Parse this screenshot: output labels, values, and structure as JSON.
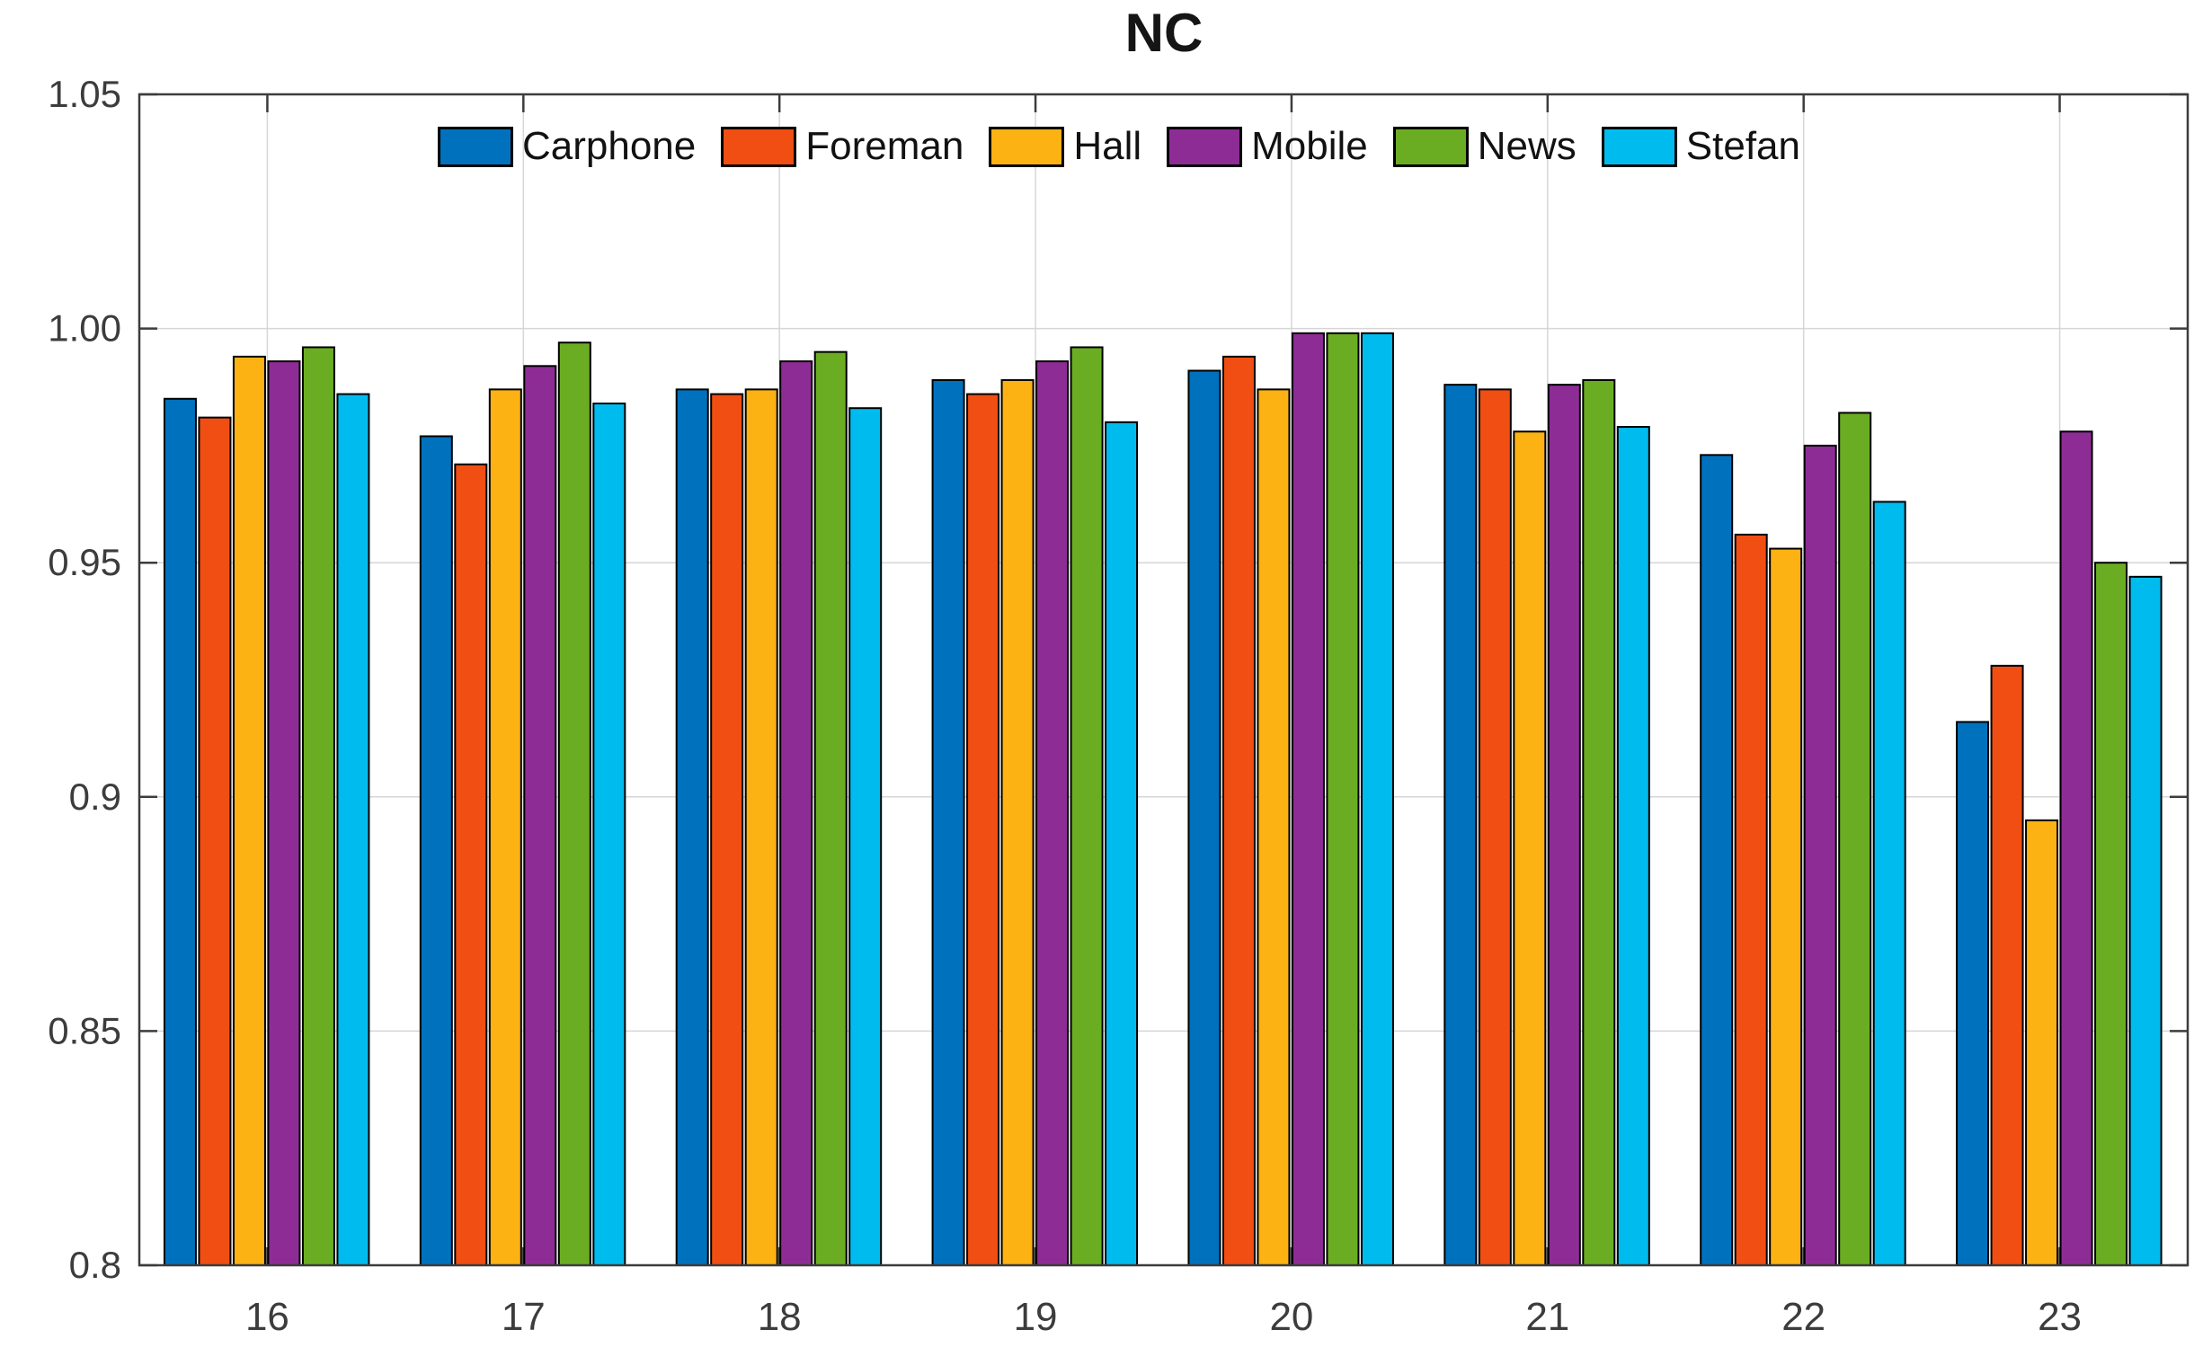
{
  "title": "NC",
  "chart_data": {
    "type": "bar",
    "title": "NC",
    "xlabel": "",
    "ylabel": "",
    "categories": [
      "16",
      "17",
      "18",
      "19",
      "20",
      "21",
      "22",
      "23"
    ],
    "series": [
      {
        "name": "Carphone",
        "color": "#0072BD",
        "values": [
          0.985,
          0.977,
          0.987,
          0.989,
          0.991,
          0.988,
          0.973,
          0.916
        ]
      },
      {
        "name": "Foreman",
        "color": "#F04E12",
        "values": [
          0.981,
          0.971,
          0.986,
          0.986,
          0.994,
          0.987,
          0.956,
          0.928
        ]
      },
      {
        "name": "Hall",
        "color": "#FCB213",
        "values": [
          0.994,
          0.987,
          0.987,
          0.989,
          0.987,
          0.978,
          0.953,
          0.895
        ]
      },
      {
        "name": "Mobile",
        "color": "#8E2C95",
        "values": [
          0.993,
          0.992,
          0.993,
          0.993,
          0.999,
          0.988,
          0.975,
          0.978
        ]
      },
      {
        "name": "News",
        "color": "#6BAD22",
        "values": [
          0.996,
          0.997,
          0.995,
          0.996,
          0.999,
          0.989,
          0.982,
          0.95
        ]
      },
      {
        "name": "Stefan",
        "color": "#00BCEE",
        "values": [
          0.986,
          0.984,
          0.983,
          0.98,
          0.999,
          0.979,
          0.963,
          0.947
        ]
      }
    ],
    "ylim": [
      0.8,
      1.05
    ],
    "yticks": [
      {
        "label": "0.8",
        "value": 0.8
      },
      {
        "label": "0.85",
        "value": 0.85
      },
      {
        "label": "0.9",
        "value": 0.9
      },
      {
        "label": "0.95",
        "value": 0.95
      },
      {
        "label": "1.00",
        "value": 1.0
      },
      {
        "label": "1.05",
        "value": 1.05
      }
    ],
    "grid": true,
    "legend_position": "top-inside"
  },
  "colors": {
    "grid": "#d6d6d6",
    "axis": "#3c3c3c",
    "tick_label": "#3c3c3c",
    "bar_outline": "#000000"
  }
}
